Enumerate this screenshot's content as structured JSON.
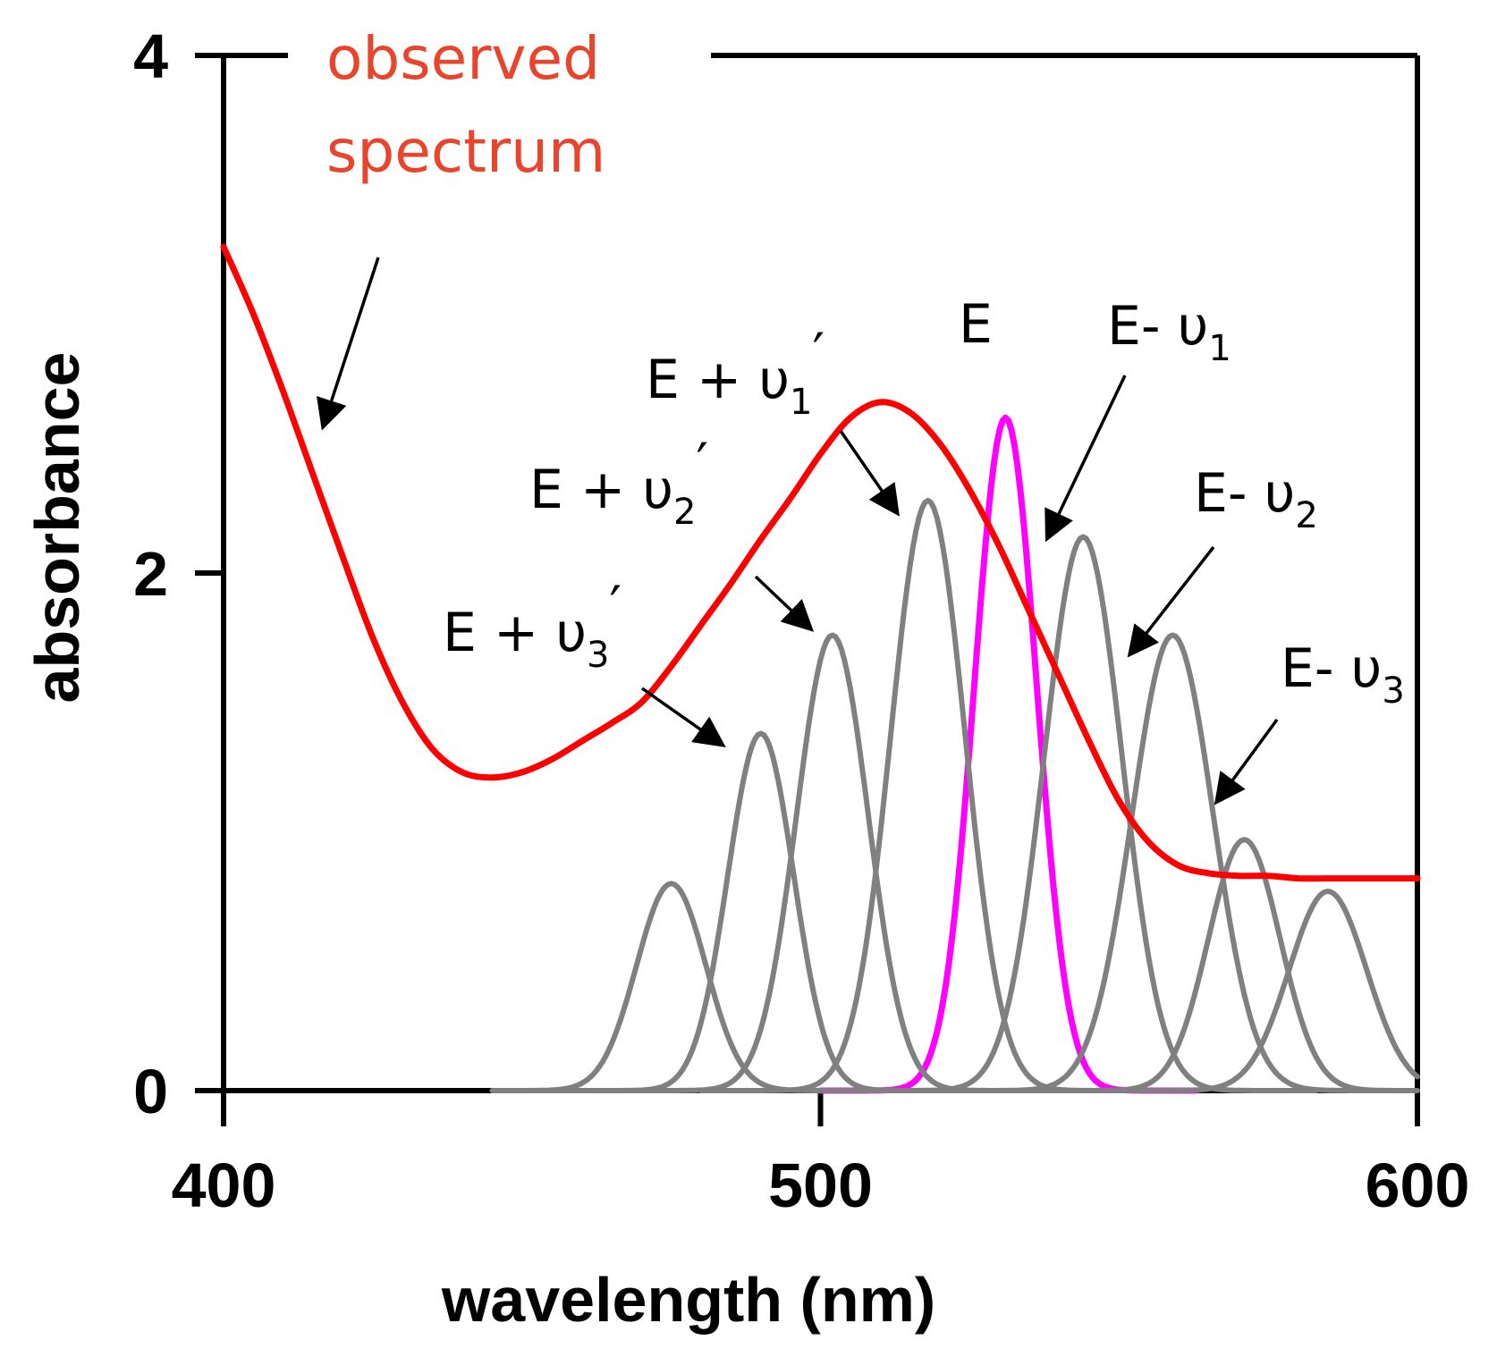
{
  "chart_data": {
    "type": "line",
    "xlabel": "wavelength (nm)",
    "ylabel": "absorbance",
    "xlim": [
      400,
      600
    ],
    "ylim": [
      0,
      4
    ],
    "x_ticks": [
      400,
      500,
      600
    ],
    "y_ticks": [
      0,
      2,
      4
    ],
    "grid": false,
    "series": [
      {
        "role": "observed",
        "color": "#ff0000",
        "x": [
          400,
          405,
          410,
          415,
          420,
          425,
          430,
          435,
          440,
          445,
          450,
          455,
          460,
          465,
          470,
          475,
          480,
          485,
          490,
          495,
          500,
          505,
          510,
          515,
          520,
          525,
          530,
          535,
          540,
          545,
          550,
          555,
          560,
          565,
          570,
          575,
          580,
          585,
          590,
          595,
          600
        ],
        "y": [
          3.26,
          3.0,
          2.7,
          2.38,
          2.06,
          1.75,
          1.5,
          1.32,
          1.23,
          1.21,
          1.23,
          1.28,
          1.35,
          1.42,
          1.5,
          1.64,
          1.8,
          1.96,
          2.13,
          2.29,
          2.46,
          2.6,
          2.66,
          2.62,
          2.5,
          2.32,
          2.1,
          1.85,
          1.6,
          1.35,
          1.12,
          0.96,
          0.87,
          0.84,
          0.83,
          0.83,
          0.82,
          0.82,
          0.82,
          0.82,
          0.82
        ],
        "mark": "observed-spectrum-line"
      },
      {
        "role": "E",
        "color": "#ff00ff",
        "center": 531,
        "peak": 2.6,
        "width": 5.2,
        "x_range": [
          500,
          563
        ],
        "mark": "peak-e-line"
      },
      {
        "role": "E + u1'",
        "color": "#808080",
        "center": 518,
        "peak": 2.28,
        "width": 6.2,
        "x_range": [
          480,
          556
        ],
        "mark": "peak-e-plus-u1-line"
      },
      {
        "role": "E + u2'",
        "color": "#808080",
        "center": 502,
        "peak": 1.76,
        "width": 6.0,
        "x_range": [
          465,
          540
        ],
        "mark": "peak-e-plus-u2-line"
      },
      {
        "role": "E + u3'",
        "color": "#808080",
        "center": 490,
        "peak": 1.38,
        "width": 5.5,
        "x_range": [
          450,
          530
        ],
        "mark": "peak-e-plus-u3-line"
      },
      {
        "role": "E + u4'",
        "color": "#808080",
        "center": 475,
        "peak": 0.8,
        "width": 5.8,
        "x_range": [
          445,
          515
        ],
        "mark": "peak-e-plus-u4-line"
      },
      {
        "role": "E- u1",
        "color": "#808080",
        "center": 544,
        "peak": 2.14,
        "width": 6.5,
        "x_range": [
          505,
          583
        ],
        "mark": "peak-e-minus-u1-line"
      },
      {
        "role": "E- u2",
        "color": "#808080",
        "center": 559,
        "peak": 1.76,
        "width": 6.8,
        "x_range": [
          520,
          598
        ],
        "mark": "peak-e-minus-u2-line"
      },
      {
        "role": "E- u3",
        "color": "#808080",
        "center": 571,
        "peak": 0.97,
        "width": 6.0,
        "x_range": [
          535,
          600
        ],
        "mark": "peak-e-minus-u3-line"
      },
      {
        "role": "E- u4",
        "color": "#808080",
        "center": 585,
        "peak": 0.77,
        "width": 6.5,
        "x_range": [
          550,
          600
        ],
        "mark": "peak-e-minus-u4-line"
      }
    ],
    "annotations": [
      {
        "name": "anno-observed",
        "lines": [
          "observed",
          "spectrum"
        ],
        "color": "#e8452c"
      },
      {
        "name": "anno-e",
        "base": "E"
      },
      {
        "name": "anno-e-plus-u1",
        "base": "E + υ",
        "sub": "1",
        "prime": "′"
      },
      {
        "name": "anno-e-plus-u2",
        "base": "E + υ",
        "sub": "2",
        "prime": "′"
      },
      {
        "name": "anno-e-plus-u3",
        "base": "E + υ",
        "sub": "3",
        "prime": "′"
      },
      {
        "name": "anno-e-minus-u1",
        "base": "E- υ",
        "sub": "1"
      },
      {
        "name": "anno-e-minus-u2",
        "base": "E- υ",
        "sub": "2"
      },
      {
        "name": "anno-e-minus-u3",
        "base": "E- υ",
        "sub": "3"
      }
    ]
  }
}
